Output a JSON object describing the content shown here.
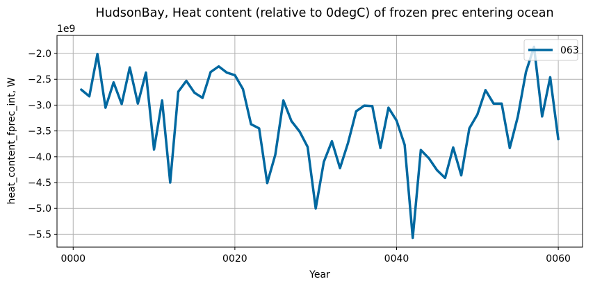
{
  "chart_data": {
    "type": "line",
    "title": "HudsonBay, Heat content (relative to 0degC) of frozen prec entering ocean",
    "xlabel": "Year",
    "ylabel": "heat_content_fprec_int, W",
    "y_offset_label": "1e9",
    "xlim": [
      -2,
      63
    ],
    "ylim": [
      -5.75,
      -1.65
    ],
    "xticks": [
      0,
      20,
      40,
      60
    ],
    "xtick_labels": [
      "0000",
      "0020",
      "0040",
      "0060"
    ],
    "yticks": [
      -5.5,
      -5.0,
      -4.5,
      -4.0,
      -3.5,
      -3.0,
      -2.5,
      -2.0
    ],
    "ytick_labels": [
      "−5.5",
      "−5.0",
      "−4.5",
      "−4.0",
      "−3.5",
      "−3.0",
      "−2.5",
      "−2.0"
    ],
    "grid": true,
    "legend_position": "top-right",
    "series": [
      {
        "name": "063",
        "color": "#0068a0",
        "x": [
          1,
          2,
          3,
          4,
          5,
          6,
          7,
          8,
          9,
          10,
          11,
          12,
          13,
          14,
          15,
          16,
          17,
          18,
          19,
          20,
          21,
          22,
          23,
          24,
          25,
          26,
          27,
          28,
          29,
          30,
          31,
          32,
          33,
          34,
          35,
          36,
          37,
          38,
          39,
          40,
          41,
          42,
          43,
          44,
          45,
          46,
          47,
          48,
          49,
          50,
          51,
          52,
          53,
          54,
          55,
          56,
          57,
          58,
          59,
          60
        ],
        "values": [
          -2.7,
          -2.83,
          -2.01,
          -3.05,
          -2.56,
          -2.98,
          -2.27,
          -2.97,
          -2.37,
          -3.86,
          -2.91,
          -4.5,
          -2.74,
          -2.53,
          -2.76,
          -2.86,
          -2.36,
          -2.25,
          -2.37,
          -2.42,
          -2.69,
          -3.37,
          -3.45,
          -4.51,
          -3.96,
          -2.91,
          -3.31,
          -3.51,
          -3.81,
          -5.0,
          -4.1,
          -3.7,
          -4.22,
          -3.73,
          -3.12,
          -3.01,
          -3.02,
          -3.83,
          -3.05,
          -3.3,
          -3.77,
          -5.57,
          -3.87,
          -4.03,
          -4.26,
          -4.41,
          -3.82,
          -4.36,
          -3.45,
          -3.18,
          -2.71,
          -2.97,
          -2.97,
          -3.83,
          -3.22,
          -2.36,
          -1.87,
          -3.22,
          -2.46,
          -3.66
        ]
      }
    ]
  }
}
